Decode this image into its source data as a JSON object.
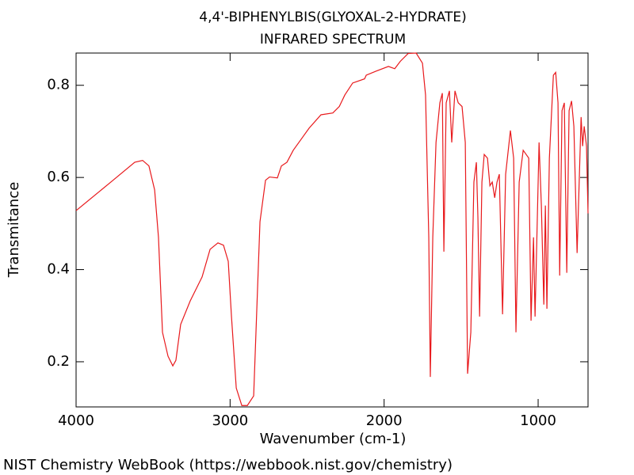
{
  "chart_data": {
    "type": "line",
    "title": "4,4'-BIPHENYLBIS(GLYOXAL-2-HYDRATE)",
    "subtitle": "INFRARED SPECTRUM",
    "xlabel": "Wavenumber (cm-1)",
    "ylabel": "Transmitance",
    "caption": "NIST Chemistry WebBook (https://webbook.nist.gov/chemistry)",
    "color": "#e8191c",
    "xlim": [
      4000,
      676
    ],
    "ylim": [
      0.102,
      0.87
    ],
    "xticks": [
      4000,
      3000,
      2000,
      1000
    ],
    "yticks": [
      0.2,
      0.4,
      0.6,
      0.8
    ],
    "x": [
      4000,
      3774,
      3619,
      3568,
      3527,
      3490,
      3465,
      3439,
      3403,
      3372,
      3352,
      3321,
      3259,
      3182,
      3130,
      3079,
      3043,
      3012,
      2991,
      2960,
      2924,
      2888,
      2847,
      2832,
      2806,
      2770,
      2744,
      2693,
      2667,
      2631,
      2590,
      2487,
      2410,
      2333,
      2291,
      2255,
      2204,
      2127,
      2116,
      2050,
      1972,
      1931,
      1895,
      1844,
      1792,
      1751,
      1731,
      1710,
      1700,
      1684,
      1663,
      1638,
      1622,
      1612,
      1597,
      1576,
      1561,
      1540,
      1519,
      1494,
      1473,
      1458,
      1437,
      1417,
      1401,
      1391,
      1380,
      1365,
      1350,
      1329,
      1313,
      1298,
      1282,
      1267,
      1252,
      1231,
      1211,
      1180,
      1159,
      1144,
      1123,
      1097,
      1061,
      1046,
      1030,
      1020,
      994,
      979,
      963,
      953,
      943,
      927,
      901,
      886,
      871,
      860,
      845,
      830,
      814,
      799,
      783,
      768,
      747,
      721,
      711,
      701,
      686,
      676
    ],
    "values": [
      0.528,
      0.59,
      0.633,
      0.637,
      0.625,
      0.573,
      0.47,
      0.264,
      0.212,
      0.191,
      0.203,
      0.281,
      0.332,
      0.384,
      0.444,
      0.458,
      0.453,
      0.418,
      0.298,
      0.143,
      0.105,
      0.105,
      0.126,
      0.264,
      0.504,
      0.594,
      0.601,
      0.599,
      0.625,
      0.633,
      0.659,
      0.707,
      0.736,
      0.74,
      0.754,
      0.779,
      0.805,
      0.814,
      0.822,
      0.831,
      0.841,
      0.836,
      0.852,
      0.869,
      0.87,
      0.848,
      0.779,
      0.47,
      0.167,
      0.47,
      0.676,
      0.762,
      0.783,
      0.439,
      0.762,
      0.788,
      0.676,
      0.788,
      0.762,
      0.754,
      0.676,
      0.174,
      0.264,
      0.59,
      0.633,
      0.513,
      0.298,
      0.59,
      0.65,
      0.642,
      0.582,
      0.59,
      0.556,
      0.59,
      0.607,
      0.303,
      0.607,
      0.702,
      0.642,
      0.264,
      0.59,
      0.659,
      0.642,
      0.289,
      0.47,
      0.298,
      0.676,
      0.539,
      0.324,
      0.539,
      0.315,
      0.642,
      0.822,
      0.828,
      0.762,
      0.387,
      0.745,
      0.762,
      0.393,
      0.745,
      0.766,
      0.711,
      0.436,
      0.731,
      0.668,
      0.711,
      0.668,
      0.522
    ]
  }
}
